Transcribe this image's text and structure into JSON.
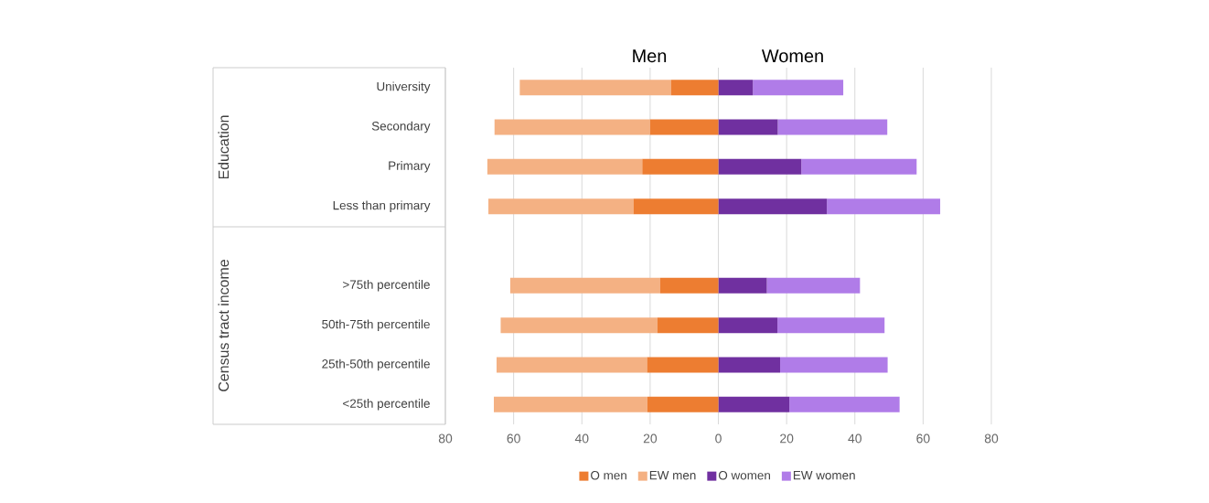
{
  "chart_data": {
    "type": "bar",
    "orientation": "horizontal",
    "stacked": true,
    "categories": [
      "University",
      "Secondary",
      "Primary",
      "Less than primary",
      null,
      ">75th percentile",
      "50th-75th percentile",
      "25th-50th percentile",
      "<25th percentile"
    ],
    "series": [
      {
        "name": "O men",
        "color": "#ed7d31",
        "values": [
          -13.9,
          -20.0,
          -22.3,
          -24.9,
          null,
          -17.1,
          -17.9,
          -20.9,
          -20.8
        ]
      },
      {
        "name": "EW men",
        "color": "#f4b183",
        "values": [
          -44.3,
          -45.6,
          -45.4,
          -42.5,
          null,
          -43.9,
          -45.9,
          -44.1,
          -45.0
        ]
      },
      {
        "name": "O women",
        "color": "#7030a0",
        "values": [
          10.1,
          17.4,
          24.3,
          31.8,
          null,
          14.2,
          17.3,
          18.1,
          20.8
        ]
      },
      {
        "name": "EW women",
        "color": "#b07ce8",
        "values": [
          26.5,
          32.1,
          33.8,
          33.2,
          null,
          27.3,
          31.4,
          31.5,
          32.3
        ]
      }
    ],
    "xlim": [
      -80,
      80
    ],
    "xticks": [
      {
        "value": -80,
        "label": "80"
      },
      {
        "value": -60,
        "label": "60"
      },
      {
        "value": -40,
        "label": "40"
      },
      {
        "value": -20,
        "label": "20"
      },
      0,
      20,
      40,
      60,
      80
    ],
    "annotations": [
      "Men",
      "Women",
      "Education",
      "Census tract income"
    ],
    "grid": "x",
    "legend": "bottom"
  }
}
